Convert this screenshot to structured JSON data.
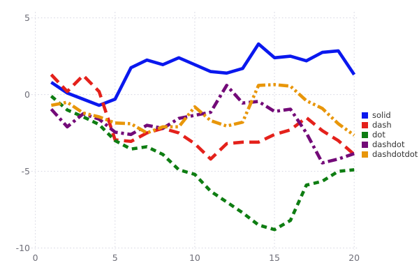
{
  "figure": {
    "background_color": "#ffffff",
    "grid_color": "#d9d9e4",
    "tick_label_color": "#6e6e78",
    "legend_text_color": "#333333"
  },
  "chart_data": {
    "type": "line",
    "title": "",
    "xlabel": "",
    "ylabel": "",
    "xlim": [
      0,
      20.6
    ],
    "ylim": [
      -10.5,
      5.5
    ],
    "x_ticks": [
      0,
      5,
      10,
      15,
      20
    ],
    "y_ticks": [
      5,
      0,
      -5,
      -10
    ],
    "grid": "dotted",
    "legend_position": "right-outside",
    "x": [
      1,
      2,
      3,
      4,
      5,
      6,
      7,
      8,
      9,
      10,
      11,
      12,
      13,
      14,
      15,
      16,
      17,
      18,
      19,
      20
    ],
    "series": [
      {
        "name": "solid",
        "color": "#0a18ee",
        "linestyle": "solid",
        "dash_pattern": "",
        "values": [
          0.8,
          0.1,
          -0.3,
          -0.7,
          -0.3,
          1.75,
          2.25,
          1.95,
          2.4,
          1.95,
          1.5,
          1.4,
          1.7,
          3.3,
          2.4,
          2.5,
          2.2,
          2.75,
          2.85,
          1.3
        ]
      },
      {
        "name": "dash",
        "color": "#e4211b",
        "linestyle": "dash",
        "dash_pattern": "15 8",
        "values": [
          1.3,
          0.2,
          1.25,
          0.2,
          -2.95,
          -3.05,
          -2.5,
          -2.2,
          -2.5,
          -3.2,
          -4.2,
          -3.2,
          -3.1,
          -3.1,
          -2.6,
          -2.3,
          -1.5,
          -2.35,
          -3.0,
          -3.9
        ]
      },
      {
        "name": "dot",
        "color": "#0e7d12",
        "linestyle": "dot",
        "dash_pattern": "8 6",
        "values": [
          -0.1,
          -1.0,
          -1.45,
          -1.95,
          -3.0,
          -3.55,
          -3.4,
          -3.9,
          -4.9,
          -5.2,
          -6.3,
          -7.0,
          -7.7,
          -8.5,
          -8.8,
          -8.2,
          -5.9,
          -5.65,
          -5.0,
          -4.9
        ]
      },
      {
        "name": "dashdot",
        "color": "#730a78",
        "linestyle": "dashdot",
        "dash_pattern": "13 5 4 5",
        "values": [
          -0.95,
          -2.1,
          -1.25,
          -1.6,
          -2.45,
          -2.6,
          -2.0,
          -2.2,
          -1.55,
          -1.35,
          -1.15,
          0.6,
          -0.55,
          -0.45,
          -1.1,
          -0.95,
          -2.5,
          -4.45,
          -4.2,
          -3.85
        ]
      },
      {
        "name": "dashdotdot",
        "color": "#e8960a",
        "linestyle": "dashdotdot",
        "dash_pattern": "14 4 3.5 4 3.5 4",
        "values": [
          -0.7,
          -0.5,
          -1.2,
          -1.45,
          -1.85,
          -1.9,
          -2.5,
          -2.1,
          -2.1,
          -0.8,
          -1.7,
          -2.05,
          -1.8,
          0.6,
          0.65,
          0.55,
          -0.4,
          -0.9,
          -1.9,
          -2.65
        ]
      }
    ]
  }
}
